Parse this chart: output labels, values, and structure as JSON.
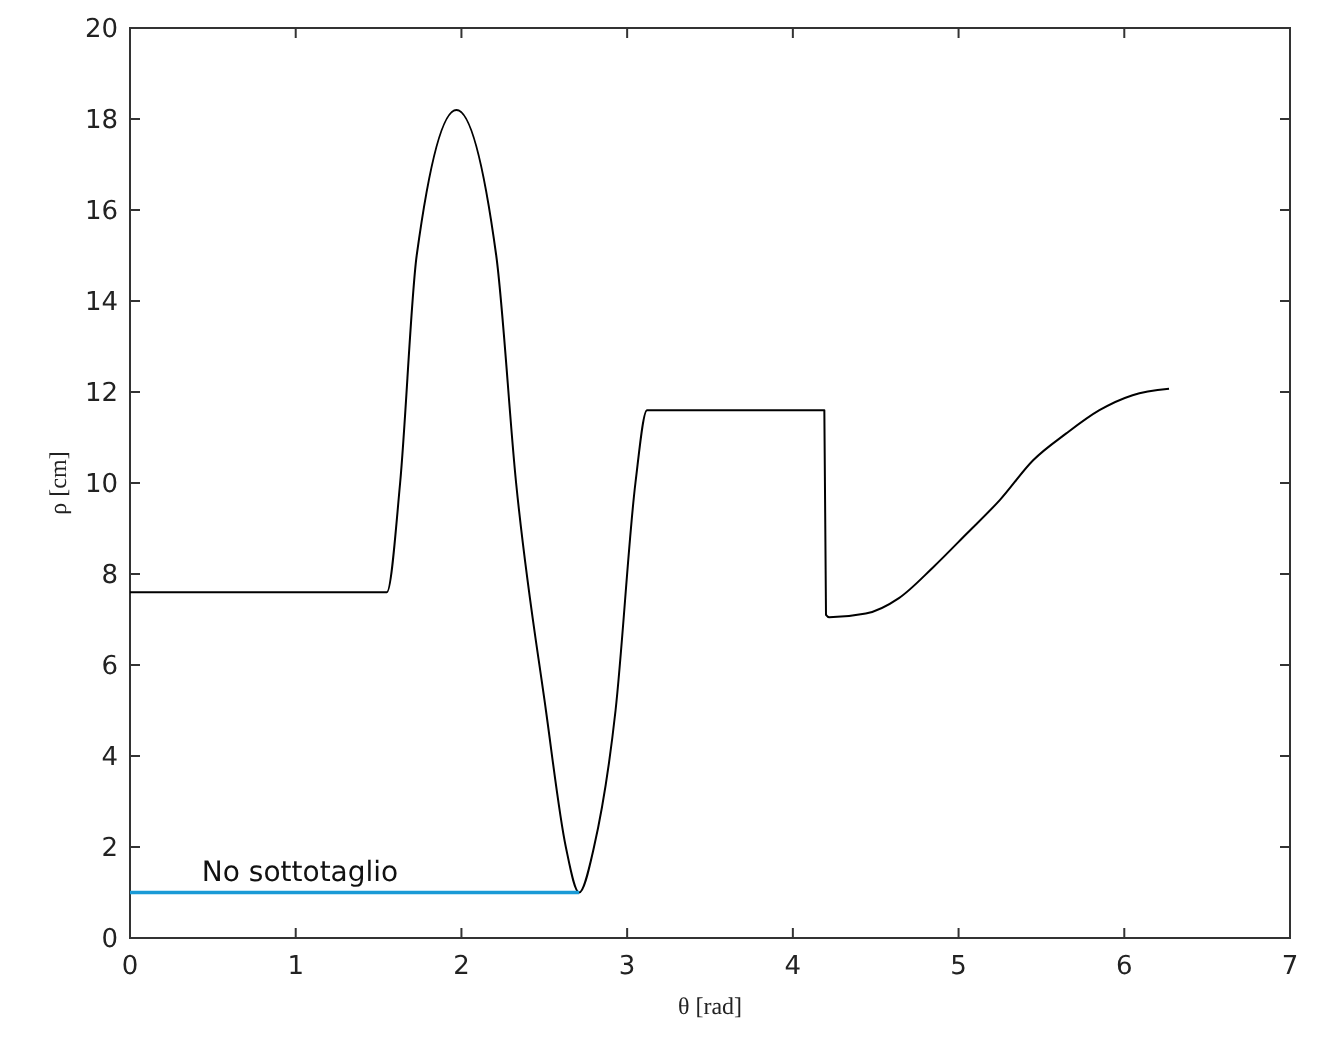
{
  "chart_data": {
    "type": "line",
    "xlabel": "θ [rad]",
    "ylabel": "ρ [cm]",
    "xlim": [
      0,
      7
    ],
    "ylim": [
      0,
      20
    ],
    "xticks": [
      0,
      1,
      2,
      3,
      4,
      5,
      6,
      7
    ],
    "yticks": [
      0,
      2,
      4,
      6,
      8,
      10,
      12,
      14,
      16,
      18,
      20
    ],
    "grid": false,
    "marker": "none",
    "line_style": "solid",
    "series": [
      {
        "color": "#000000",
        "x": [
          0,
          1.55,
          1.63,
          1.73,
          1.97,
          2.21,
          2.33,
          2.51,
          2.63,
          2.71,
          2.8,
          2.93,
          3.05,
          3.12,
          4.19,
          4.2,
          4.22,
          4.44,
          4.64,
          4.85,
          5.05,
          5.25,
          5.45,
          5.65,
          5.85,
          6.05,
          6.27
        ],
        "values": [
          7.6,
          7.6,
          10,
          15,
          18.2,
          15,
          10,
          5,
          2,
          1,
          2,
          5,
          10,
          11.6,
          11.6,
          7.1,
          7.05,
          7.13,
          7.47,
          8.16,
          8.89,
          9.63,
          10.5,
          11.09,
          11.6,
          11.93,
          12.07
        ]
      },
      {
        "name": "No sottotaglio",
        "color": "#1a9ad6",
        "x": [
          0,
          2.71
        ],
        "values": [
          1,
          1
        ]
      }
    ]
  }
}
